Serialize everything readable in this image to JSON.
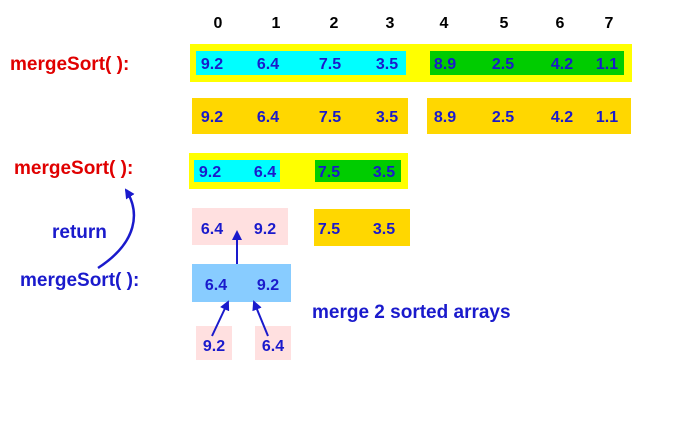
{
  "index_labels": [
    "0",
    "1",
    "2",
    "3",
    "4",
    "5",
    "6",
    "7"
  ],
  "labels": {
    "merge_sort_top": "mergeSort( ):",
    "merge_sort_mid": "mergeSort( ):",
    "merge_sort_bottom": "mergeSort( ):",
    "return": "return",
    "merge_note": "merge 2 sorted arrays"
  },
  "rows": {
    "level0_left": [
      "9.2",
      "6.4",
      "7.5",
      "3.5"
    ],
    "level0_right": [
      "8.9",
      "2.5",
      "4.2",
      "1.1"
    ],
    "level1_left": [
      "9.2",
      "6.4",
      "7.5",
      "3.5"
    ],
    "level1_right": [
      "8.9",
      "2.5",
      "4.2",
      "1.1"
    ],
    "level2_left": [
      "9.2",
      "6.4"
    ],
    "level2_right": [
      "7.5",
      "3.5"
    ],
    "level3_sorted": [
      "6.4",
      "9.2"
    ],
    "level3_pending": [
      "7.5",
      "3.5"
    ],
    "merged": [
      "6.4",
      "9.2"
    ],
    "leaf_left": [
      "9.2"
    ],
    "leaf_right": [
      "6.4"
    ]
  },
  "colors": {
    "active_outline": "#ffff00",
    "left_half": "#00ffff",
    "right_half": "#00cc00",
    "pending": "#ffd700",
    "sorted_pink": "#ffe0e0",
    "merged_blue": "#88ccff",
    "label_red": "#e00000",
    "label_blue": "#1a1acc"
  }
}
